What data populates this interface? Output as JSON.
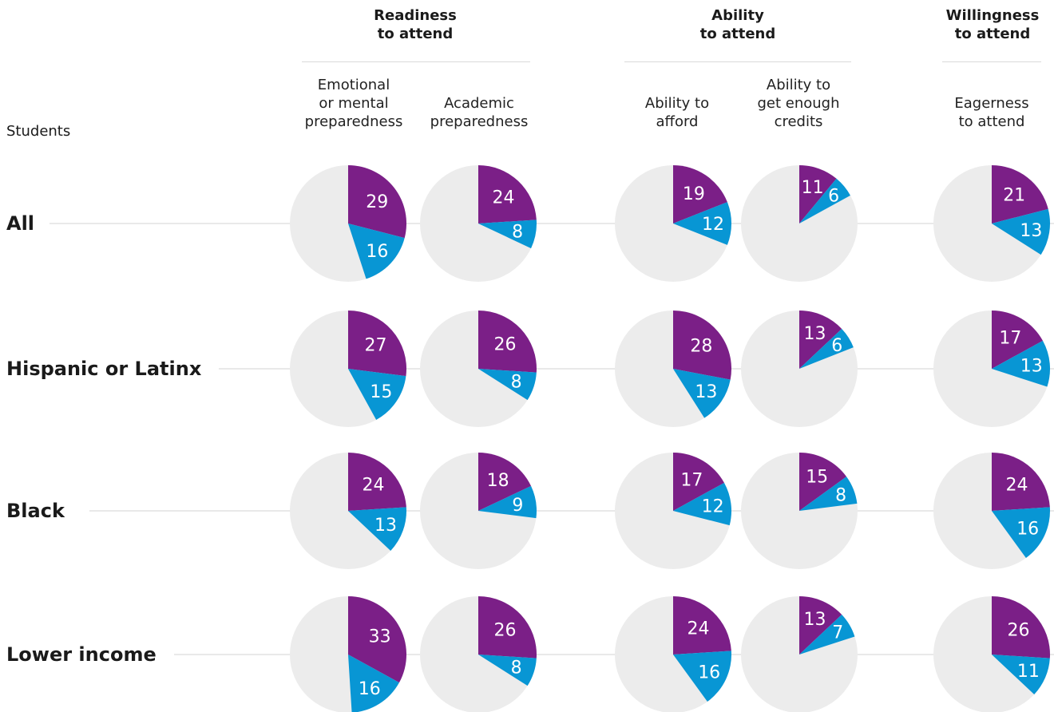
{
  "colors": {
    "a": "#7b1f87",
    "b": "#0896d4",
    "rest": "#ececec",
    "line": "#dcdcdc"
  },
  "stub_label": "Students",
  "groups": [
    {
      "label": "Readiness\nto attend"
    },
    {
      "label": "Ability\nto attend"
    },
    {
      "label": "Willingness\nto attend"
    }
  ],
  "columns": [
    {
      "label": "Emotional\nor mental\npreparedness"
    },
    {
      "label": "Academic\npreparedness"
    },
    {
      "label": "Ability to\nafford"
    },
    {
      "label": "Ability to\nget enough\ncredits"
    },
    {
      "label": "Eagerness\nto attend"
    }
  ],
  "chart_data": {
    "type": "pie",
    "rows": [
      "All",
      "Hispanic or Latinx",
      "Black",
      "Lower income"
    ],
    "values": [
      [
        [
          29,
          16
        ],
        [
          24,
          8
        ],
        [
          19,
          12
        ],
        [
          11,
          6
        ],
        [
          21,
          13
        ]
      ],
      [
        [
          27,
          15
        ],
        [
          26,
          8
        ],
        [
          28,
          13
        ],
        [
          13,
          6
        ],
        [
          17,
          13
        ]
      ],
      [
        [
          24,
          13
        ],
        [
          18,
          9
        ],
        [
          17,
          12
        ],
        [
          15,
          8
        ],
        [
          24,
          16
        ]
      ],
      [
        [
          33,
          16
        ],
        [
          26,
          8
        ],
        [
          24,
          16
        ],
        [
          13,
          7
        ],
        [
          26,
          11
        ]
      ]
    ]
  }
}
